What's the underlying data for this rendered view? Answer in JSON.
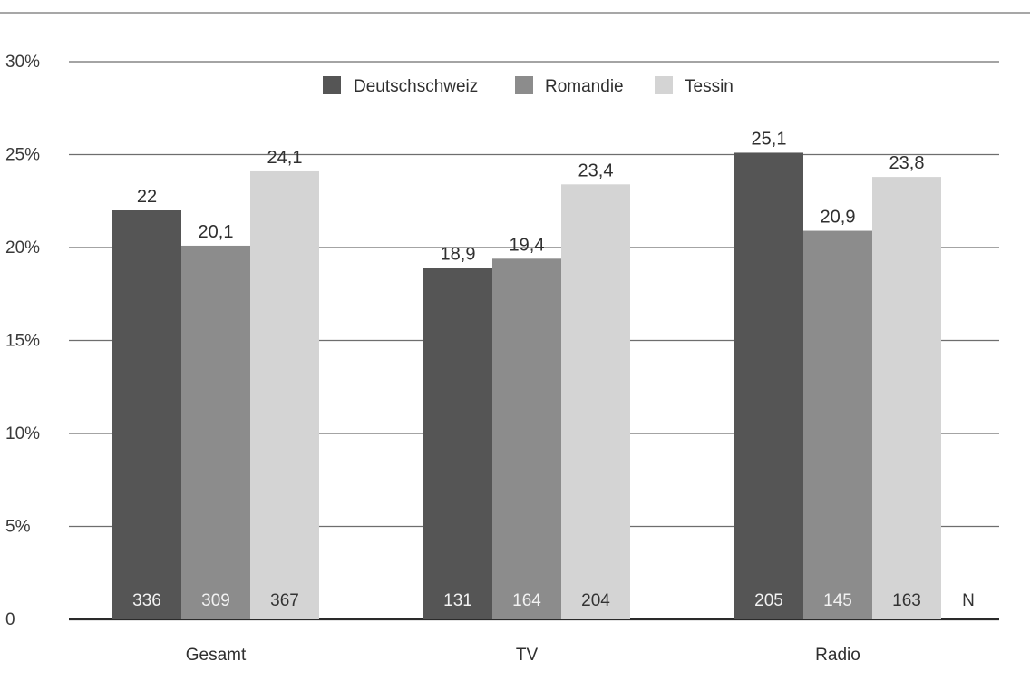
{
  "chart_data": {
    "type": "bar",
    "categories": [
      "Gesamt",
      "TV",
      "Radio"
    ],
    "series": [
      {
        "name": "Deutschschweiz",
        "values": [
          22,
          18.9,
          25.1
        ],
        "value_labels": [
          "22",
          "18,9",
          "25,1"
        ],
        "n": [
          "336",
          "131",
          "205"
        ],
        "color": "#555555"
      },
      {
        "name": "Romandie",
        "values": [
          20.1,
          19.4,
          20.9
        ],
        "value_labels": [
          "20,1",
          "19,4",
          "20,9"
        ],
        "n": [
          "309",
          "164",
          "145"
        ],
        "color": "#8c8c8c"
      },
      {
        "name": "Tessin",
        "values": [
          24.1,
          23.4,
          23.8
        ],
        "value_labels": [
          "24,1",
          "23,4",
          "23,8"
        ],
        "n": [
          "367",
          "204",
          "163"
        ],
        "color": "#d4d4d4"
      }
    ],
    "yticks": [
      0,
      5,
      10,
      15,
      20,
      25,
      30
    ],
    "ytick_labels": [
      "0",
      "5%",
      "10%",
      "15%",
      "20%",
      "25%",
      "30%"
    ],
    "ylim": [
      0,
      30
    ],
    "n_label": "N",
    "grid": true,
    "legend_position": "top-center"
  }
}
